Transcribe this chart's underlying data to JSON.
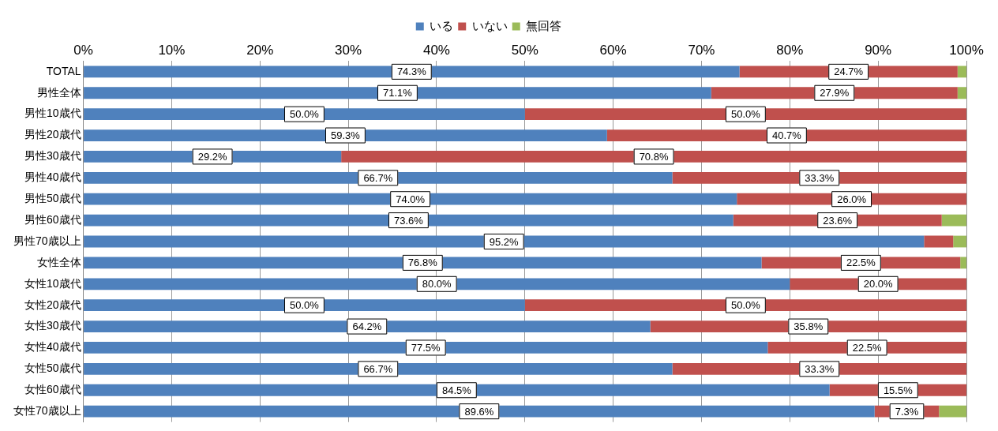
{
  "chart_data": {
    "type": "bar",
    "orientation": "horizontal",
    "stacked": true,
    "legend": "top",
    "grid": "x",
    "categories": [
      "TOTAL",
      "男性全体",
      "男性10歳代",
      "男性20歳代",
      "男性30歳代",
      "男性40歳代",
      "男性50歳代",
      "男性60歳代",
      "男性70歳以上",
      "女性全体",
      "女性10歳代",
      "女性20歳代",
      "女性30歳代",
      "女性40歳代",
      "女性50歳代",
      "女性60歳代",
      "女性70歳以上"
    ],
    "xlim": [
      0,
      100
    ],
    "xticks": [
      {
        "value": 0,
        "label": "0%"
      },
      {
        "value": 10,
        "label": "10%"
      },
      {
        "value": 20,
        "label": "20%"
      },
      {
        "value": 30,
        "label": "30%"
      },
      {
        "value": 40,
        "label": "40%"
      },
      {
        "value": 50,
        "label": "50%"
      },
      {
        "value": 60,
        "label": "60%"
      },
      {
        "value": 70,
        "label": "70%"
      },
      {
        "value": 80,
        "label": "80%"
      },
      {
        "value": 90,
        "label": "90%"
      },
      {
        "value": 100,
        "label": "100%"
      }
    ],
    "series": [
      {
        "name": "いる",
        "color": "#4f81bd",
        "values": [
          74.3,
          71.1,
          50.0,
          59.3,
          29.2,
          66.7,
          74.0,
          73.6,
          95.2,
          76.8,
          80.0,
          50.0,
          64.2,
          77.5,
          66.7,
          84.5,
          89.6
        ],
        "value_labels": [
          "74.3%",
          "71.1%",
          "50.0%",
          "59.3%",
          "29.2%",
          "66.7%",
          "74.0%",
          "73.6%",
          "95.2%",
          "76.8%",
          "80.0%",
          "50.0%",
          "64.2%",
          "77.5%",
          "66.7%",
          "84.5%",
          "89.6%"
        ]
      },
      {
        "name": "いない",
        "color": "#c0504d",
        "values": [
          24.7,
          27.9,
          50.0,
          40.7,
          70.8,
          33.3,
          26.0,
          23.6,
          3.3,
          22.5,
          20.0,
          50.0,
          35.8,
          22.5,
          33.3,
          15.5,
          7.3
        ],
        "value_labels": [
          "24.7%",
          "27.9%",
          "50.0%",
          "40.7%",
          "70.8%",
          "33.3%",
          "26.0%",
          "23.6%",
          null,
          "22.5%",
          "20.0%",
          "50.0%",
          "35.8%",
          "22.5%",
          "33.3%",
          "15.5%",
          "7.3%"
        ]
      },
      {
        "name": "無回答",
        "color": "#9bbb59",
        "values": [
          1.0,
          1.0,
          0,
          0,
          0,
          0,
          0,
          2.8,
          1.5,
          0.7,
          0,
          0,
          0,
          0,
          0,
          0,
          3.1
        ]
      }
    ]
  }
}
